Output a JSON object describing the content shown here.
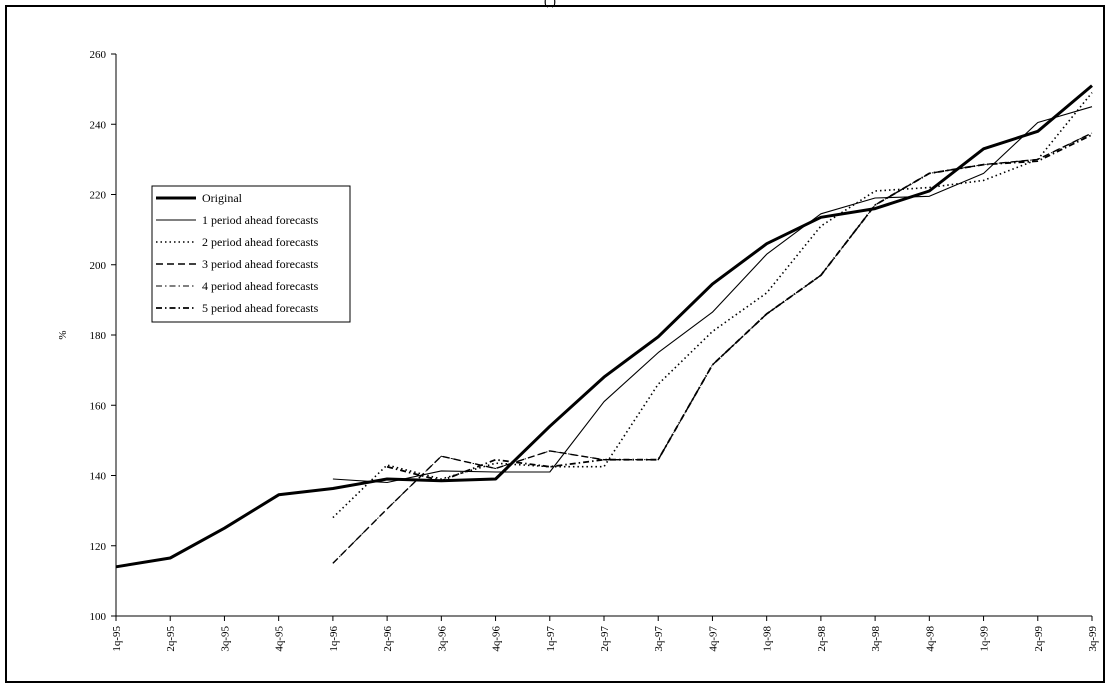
{
  "header": {
    "partial_title": "(                                                   )"
  },
  "chart_data": {
    "type": "line",
    "title": "",
    "xlabel": "",
    "ylabel": "%",
    "ylim": [
      100,
      260
    ],
    "yticks": [
      100,
      120,
      140,
      160,
      180,
      200,
      220,
      240,
      260
    ],
    "grid": false,
    "legend_position": "left",
    "categories": [
      "1q-95",
      "2q-95",
      "3q-95",
      "4q-95",
      "1q-96",
      "2q-96",
      "3q-96",
      "4q-96",
      "1q-97",
      "2q-97",
      "3q-97",
      "4q-97",
      "1q-98",
      "2q-98",
      "3q-98",
      "4q-98",
      "1q-99",
      "2q-99",
      "3q-99"
    ],
    "series": [
      {
        "name": "Original",
        "style": "thick-solid",
        "values": [
          114,
          116.5,
          125,
          134.5,
          136.3,
          139,
          138.5,
          139,
          154,
          168,
          179.5,
          194.5,
          206,
          213.5,
          216,
          221,
          233,
          238,
          251
        ]
      },
      {
        "name": "1 period ahead forecasts",
        "style": "thin-solid",
        "values": [
          null,
          null,
          null,
          null,
          139,
          138,
          141.3,
          141,
          141,
          161,
          175,
          186.5,
          203,
          214.5,
          219,
          219.5,
          226,
          240.5,
          245
        ]
      },
      {
        "name": "2 period ahead forecasts",
        "style": "dotted",
        "values": [
          null,
          null,
          null,
          null,
          128,
          143,
          139,
          143.5,
          142.5,
          142.5,
          166,
          181,
          192,
          211,
          221,
          222,
          224,
          230,
          249
        ]
      },
      {
        "name": "3 period ahead forecasts",
        "style": "dashed",
        "values": [
          null,
          null,
          null,
          null,
          115,
          130.5,
          145.5,
          142,
          147,
          144.5,
          144.5,
          171.5,
          186,
          197,
          217,
          226,
          228.5,
          230,
          237.5
        ]
      },
      {
        "name": "4 period ahead forecasts",
        "style": "dash-dot",
        "values": [
          null,
          null,
          null,
          null,
          115,
          130.5,
          145.5,
          142,
          147,
          144.5,
          144.5,
          171.5,
          186,
          197,
          217,
          226,
          228.5,
          230,
          237.5
        ]
      },
      {
        "name": "5 period ahead forecasts",
        "style": "dash-dot-heavy",
        "values": [
          null,
          null,
          null,
          null,
          null,
          142.5,
          138.5,
          144.5,
          142.5,
          144.5,
          144.5,
          171.5,
          186,
          197,
          217,
          226,
          228.5,
          229.5,
          237
        ]
      }
    ]
  }
}
